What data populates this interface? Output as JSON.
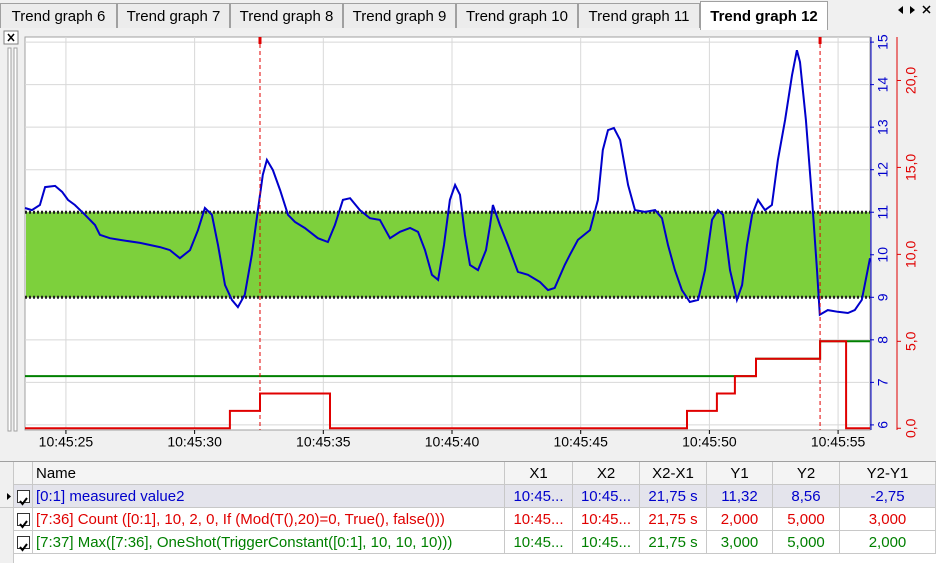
{
  "tabs": [
    "Trend graph 6",
    "Trend graph 7",
    "Trend graph 8",
    "Trend graph 9",
    "Trend graph 10",
    "Trend graph 11",
    "Trend graph 12"
  ],
  "active_tab": 6,
  "chart_data": {
    "type": "line",
    "xlim": [
      "10:45:23.41",
      "10:45:56.24"
    ],
    "xticks": [
      "10:45:25",
      "10:45:30",
      "10:45:35",
      "10:45:40",
      "10:45:45",
      "10:45:50",
      "10:45:55"
    ],
    "ylim": [
      5.88,
      15.12
    ],
    "yticks": [
      6,
      7,
      8,
      9,
      10,
      11,
      12,
      13,
      14,
      15
    ],
    "y_color": "#0000cc",
    "y2lim": [
      -0.1,
      22.5
    ],
    "y2ticks": [
      {
        "value": 0,
        "label": "0,0"
      },
      {
        "value": 5,
        "label": "5,0"
      },
      {
        "value": 10,
        "label": "10,0"
      },
      {
        "value": 15,
        "label": "15,0"
      },
      {
        "value": 20,
        "label": "20,0"
      }
    ],
    "y2_color": "#e00000",
    "grid": true,
    "band": {
      "low": 9,
      "high": 11,
      "color": "#7dd03c"
    },
    "cursors": [
      "10:45:32.54",
      "10:45:54.30"
    ],
    "series": [
      {
        "name": "[0:1] measured value2",
        "color": "#0000cc",
        "x": [
          "10:45:23.41",
          "10:45:23.68",
          "10:45:23.99",
          "10:45:24.19",
          "10:45:24.58",
          "10:45:24.85",
          "10:45:25.08",
          "10:45:25.35",
          "10:45:25.74",
          "10:45:26.13",
          "10:45:26.32",
          "10:45:26.71",
          "10:45:27.10",
          "10:45:27.88",
          "10:45:28.65",
          "10:45:29.04",
          "10:45:29.43",
          "10:45:29.82",
          "10:45:30.13",
          "10:45:30.40",
          "10:45:30.67",
          "10:45:30.91",
          "10:45:31.18",
          "10:45:31.45",
          "10:45:31.68",
          "10:45:31.95",
          "10:45:32.22",
          "10:45:32.46",
          "10:45:32.65",
          "10:45:32.81",
          "10:45:33.04",
          "10:45:33.32",
          "10:45:33.63",
          "10:45:33.90",
          "10:45:34.28",
          "10:45:34.79",
          "10:45:35.18",
          "10:45:35.45",
          "10:45:35.76",
          "10:45:36.04",
          "10:45:36.42",
          "10:45:36.81",
          "10:45:37.20",
          "10:45:37.59",
          "10:45:37.98",
          "10:45:38.37",
          "10:45:38.68",
          "10:45:38.95",
          "10:45:39.22",
          "10:45:39.46",
          "10:45:39.69",
          "10:45:39.92",
          "10:45:40.12",
          "10:45:40.31",
          "10:45:40.50",
          "10:45:40.70",
          "10:45:41.01",
          "10:45:41.32",
          "10:45:41.48",
          "10:45:41.59",
          "10:45:41.86",
          "10:45:42.17",
          "10:45:42.56",
          "10:45:42.95",
          "10:45:43.42",
          "10:45:43.73",
          "10:45:43.99",
          "10:45:44.38",
          "10:45:44.58",
          "10:45:44.89",
          "10:45:45.36",
          "10:45:45.67",
          "10:45:45.86",
          "10:45:46.06",
          "10:45:46.29",
          "10:45:46.53",
          "10:45:46.84",
          "10:45:47.11",
          "10:45:47.50",
          "10:45:47.89",
          "10:45:48.16",
          "10:45:48.39",
          "10:45:48.66",
          "10:45:48.93",
          "10:45:49.24",
          "10:45:49.56",
          "10:45:49.83",
          "10:45:50.10",
          "10:45:50.33",
          "10:45:50.53",
          "10:45:50.80",
          "10:45:51.07",
          "10:45:51.27",
          "10:45:51.46",
          "10:45:51.66",
          "10:45:51.89",
          "10:45:52.16",
          "10:45:52.43",
          "10:45:52.66",
          "10:45:52.94",
          "10:45:53.21",
          "10:45:53.40",
          "10:45:53.52",
          "10:45:53.75",
          "10:45:53.99",
          "10:45:54.18",
          "10:45:54.29",
          "10:45:54.60",
          "10:45:54.99",
          "10:45:55.38",
          "10:45:55.65",
          "10:45:55.92",
          "10:45:56.24"
        ],
        "values": [
          11.1,
          11.05,
          11.17,
          11.59,
          11.62,
          11.48,
          11.29,
          11.17,
          10.94,
          10.7,
          10.47,
          10.39,
          10.35,
          10.28,
          10.18,
          10.11,
          9.92,
          10.11,
          10.58,
          11.1,
          10.94,
          10.23,
          9.29,
          8.94,
          8.77,
          9.06,
          10.0,
          11.05,
          11.88,
          12.23,
          11.99,
          11.52,
          10.94,
          10.77,
          10.63,
          10.39,
          10.3,
          10.7,
          11.29,
          11.33,
          11.05,
          10.86,
          10.82,
          10.39,
          10.54,
          10.63,
          10.54,
          10.11,
          9.53,
          9.41,
          10.23,
          11.29,
          11.64,
          11.41,
          10.47,
          9.76,
          9.64,
          10.11,
          10.7,
          11.17,
          10.7,
          10.23,
          9.6,
          9.53,
          9.36,
          9.17,
          9.22,
          9.76,
          10.0,
          10.35,
          10.58,
          11.29,
          12.46,
          12.93,
          12.98,
          12.7,
          11.64,
          11.05,
          11.01,
          11.05,
          10.86,
          10.23,
          9.64,
          9.17,
          8.89,
          8.94,
          9.64,
          10.82,
          11.05,
          10.94,
          9.64,
          8.94,
          9.29,
          10.23,
          10.94,
          11.29,
          11.05,
          11.17,
          12.23,
          13.17,
          14.22,
          14.81,
          14.53,
          13.17,
          11.29,
          9.64,
          8.59,
          8.7,
          8.66,
          8.63,
          8.7,
          8.94,
          9.92
        ]
      },
      {
        "name": "[7:36] Count ([0:1], 10, 2, 0, If (Mod(T(),20)=0, True(), false()))",
        "color": "#e00000",
        "axis": "y2",
        "x": [
          "10:45:23.41",
          "10:45:31.37",
          "10:45:31.37",
          "10:45:32.54",
          "10:45:32.54",
          "10:45:35.26",
          "10:45:35.26",
          "10:45:49.13",
          "10:45:49.13",
          "10:45:50.29",
          "10:45:50.29",
          "10:45:50.99",
          "10:45:50.99",
          "10:45:51.81",
          "10:45:51.81",
          "10:45:54.30",
          "10:45:54.30",
          "10:45:55.31",
          "10:45:55.31",
          "10:45:56.24"
        ],
        "values": [
          0,
          0,
          1,
          1,
          2,
          2,
          0,
          0,
          1,
          1,
          2,
          2,
          3,
          3,
          4,
          4,
          5,
          5,
          0,
          0
        ]
      },
      {
        "name": "[7:37] Max([7:36], OneShot(TriggerConstant([0:1], 10, 10, 10)))",
        "color": "#008000",
        "axis": "y2",
        "x": [
          "10:45:23.41",
          "10:45:51.81",
          "10:45:51.81",
          "10:45:54.30",
          "10:45:54.30",
          "10:45:56.24"
        ],
        "values": [
          3,
          3,
          4,
          4,
          5,
          5
        ]
      }
    ]
  },
  "table": {
    "columns": [
      "Name",
      "X1",
      "X2",
      "X2-X1",
      "Y1",
      "Y2",
      "Y2-Y1"
    ],
    "rows": [
      {
        "color": "#0000cc",
        "selected": true,
        "cells": [
          "[0:1] measured value2",
          "10:45...",
          "10:45...",
          "21,75 s",
          "11,32",
          "8,56",
          "-2,75"
        ]
      },
      {
        "color": "#e00000",
        "selected": false,
        "cells": [
          "[7:36] Count ([0:1], 10, 2, 0, If (Mod(T(),20)=0, True(), false()))",
          "10:45...",
          "10:45...",
          "21,75 s",
          "2,000",
          "5,000",
          "3,000"
        ]
      },
      {
        "color": "#008000",
        "selected": false,
        "cells": [
          "[7:37] Max([7:36], OneShot(TriggerConstant([0:1], 10, 10, 10)))",
          "10:45...",
          "10:45...",
          "21,75 s",
          "3,000",
          "5,000",
          "2,000"
        ]
      }
    ]
  }
}
